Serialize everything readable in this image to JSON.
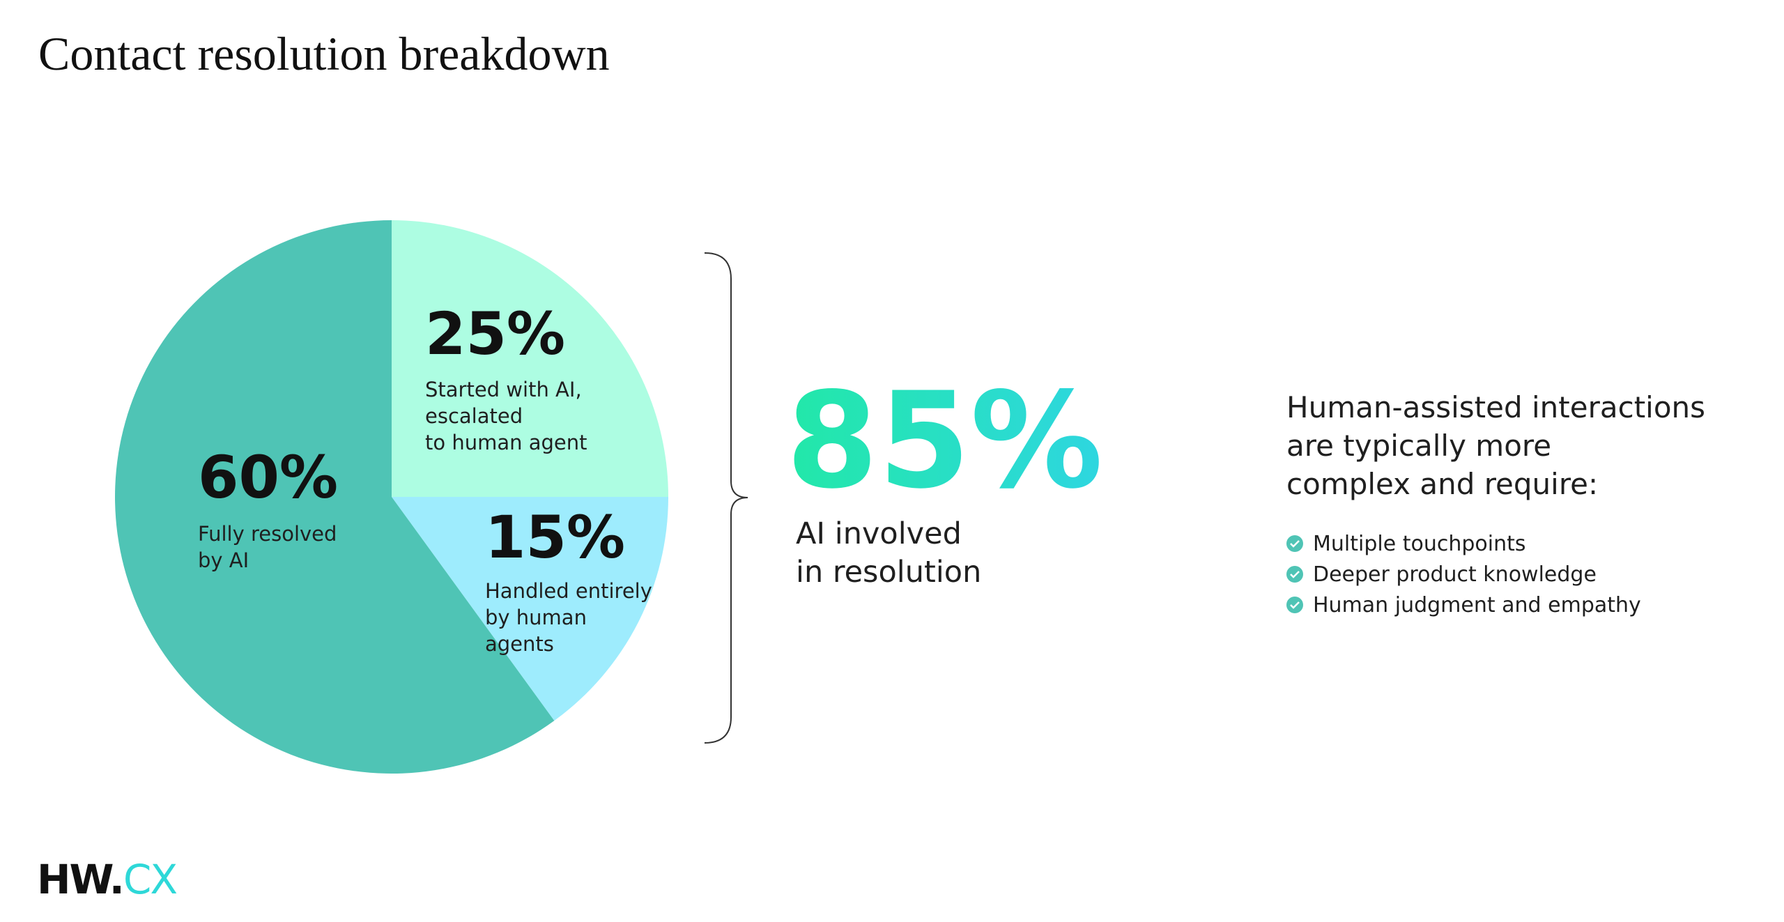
{
  "chart_data": {
    "type": "pie",
    "title": "Contact resolution breakdown",
    "categories": [
      [
        "Started with AI,",
        "escalated",
        "to human agent"
      ],
      [
        "Handled entirely",
        "by human",
        "agents"
      ],
      [
        "Fully resolved",
        "by AI"
      ]
    ],
    "values": [
      25,
      15,
      60
    ],
    "value_labels": [
      "25%",
      "15%",
      "60%"
    ],
    "colors": [
      "#adfde2",
      "#9eecfd",
      "#4fc4b5"
    ],
    "callout": {
      "text": "85%",
      "caption": [
        "AI involved",
        "in resolution"
      ]
    },
    "note": {
      "heading": [
        "Human-assisted interactions",
        "are typically more",
        "complex and require:"
      ],
      "bullets": [
        "Multiple touchpoints",
        "Deeper product knowledge",
        "Human judgment and empathy"
      ]
    }
  },
  "footer": {
    "logo": [
      "HW.",
      "CX"
    ]
  }
}
